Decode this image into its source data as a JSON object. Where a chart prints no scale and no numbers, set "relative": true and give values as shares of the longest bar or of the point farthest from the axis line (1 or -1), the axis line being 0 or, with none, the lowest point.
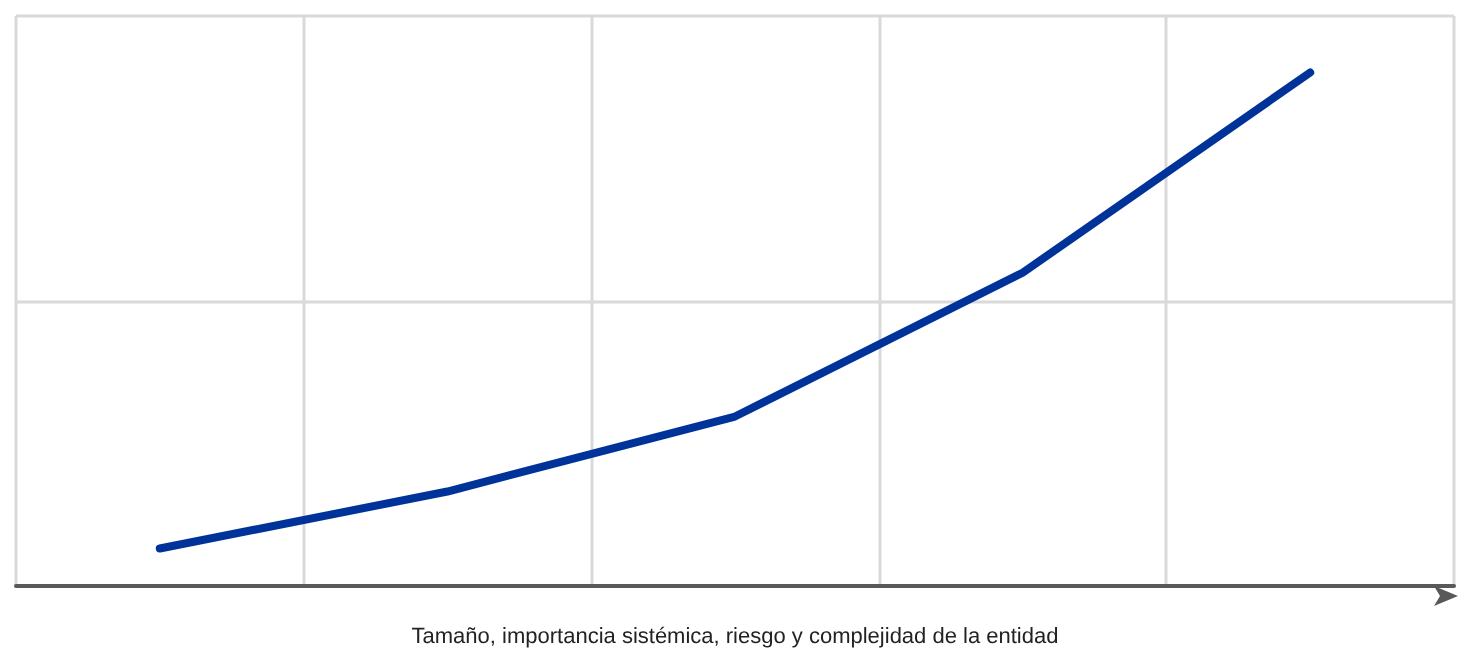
{
  "chart_data": {
    "type": "line",
    "relative": true,
    "xlabel": "Tamaño, importancia sistémica, riesgo y complejidad de la entidad",
    "categories": [
      null,
      null,
      null,
      null,
      null
    ],
    "series": [
      {
        "color": "#003399",
        "values": [
          0.073,
          0.184,
          0.33,
          0.61,
          1
        ]
      }
    ],
    "grid": true,
    "marker": "none",
    "line_style": "solid"
  }
}
